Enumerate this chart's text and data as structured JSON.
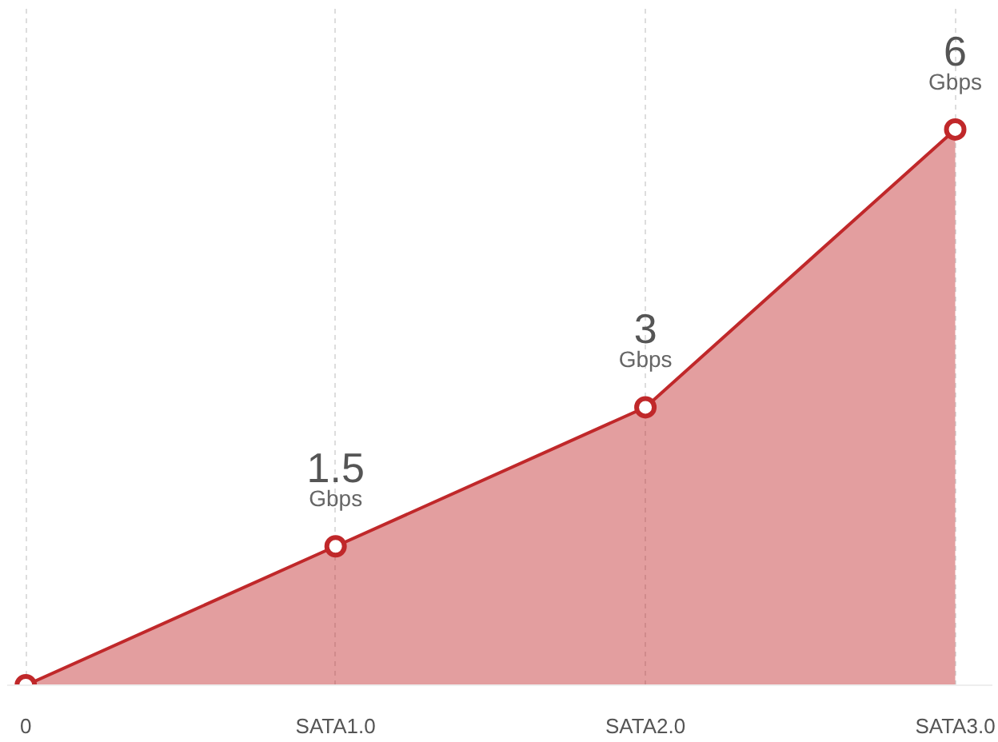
{
  "chart_data": {
    "type": "area",
    "categories": [
      "0",
      "SATA1.0",
      "SATA2.0",
      "SATA3.0"
    ],
    "series": [
      {
        "color": "#c0282a",
        "values": [
          0,
          1.5,
          3,
          6
        ],
        "value_labels": [
          null,
          "1.5",
          "3",
          "6"
        ]
      }
    ],
    "annotations": [
      {
        "text": "Gbps",
        "x": "SATA1.0",
        "y": 1.5
      },
      {
        "text": "Gbps",
        "x": "SATA2.0",
        "y": 3
      },
      {
        "text": "Gbps",
        "x": "SATA3.0",
        "y": 6
      }
    ],
    "marker": "circle",
    "grid": "x"
  }
}
